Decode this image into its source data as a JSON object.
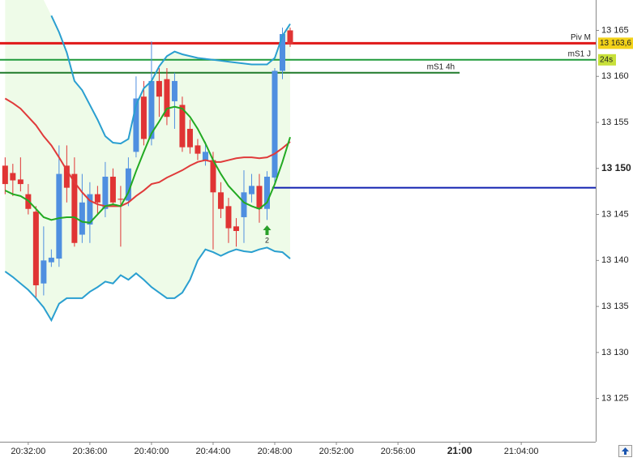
{
  "chart_data": {
    "type": "candlestick",
    "x": [
      "20:30:30",
      "20:31:00",
      "20:31:30",
      "20:32:00",
      "20:32:30",
      "20:33:00",
      "20:33:30",
      "20:34:00",
      "20:34:30",
      "20:35:00",
      "20:35:30",
      "20:36:00",
      "20:36:30",
      "20:37:00",
      "20:37:30",
      "20:38:00",
      "20:38:30",
      "20:39:00",
      "20:39:30",
      "20:40:00",
      "20:40:30",
      "20:41:00",
      "20:41:30",
      "20:42:00",
      "20:42:30",
      "20:43:00",
      "20:43:30",
      "20:44:00",
      "20:44:30",
      "20:45:00",
      "20:45:30",
      "20:46:00",
      "20:46:30",
      "20:47:00",
      "20:47:30",
      "20:48:00",
      "20:48:30",
      "20:49:00"
    ],
    "open": [
      13150.3,
      13149.5,
      13148.8,
      13147.2,
      13145.3,
      13137.5,
      13139.8,
      13140.2,
      13150.3,
      13149.4,
      13142.8,
      13143.9,
      13147.2,
      13145.6,
      13149.1,
      13146.7,
      13146.5,
      13151.8,
      13157.8,
      13153.2,
      13159.5,
      13159.7,
      13157.3,
      13156.9,
      13154.3,
      13152.5,
      13150.9,
      13150.9,
      13147.4,
      13145.9,
      13143.7,
      13144.7,
      13147.2,
      13148.1,
      13145.6,
      13149.0,
      13160.6,
      13165.0
    ],
    "high": [
      13151.2,
      13150.5,
      13151.2,
      13148.3,
      13145.9,
      13143.7,
      13141.2,
      13152.5,
      13152.5,
      13151.2,
      13149.4,
      13148.5,
      13148.1,
      13150.7,
      13150.0,
      13148.1,
      13151.2,
      13160.0,
      13159.5,
      13163.8,
      13160.9,
      13160.9,
      13160.4,
      13157.8,
      13155.3,
      13153.2,
      13152.9,
      13151.8,
      13148.5,
      13146.8,
      13144.6,
      13149.8,
      13149.4,
      13149.4,
      13149.7,
      13160.9,
      13165.3,
      13165.3
    ],
    "low": [
      13147.2,
      13147.0,
      13147.5,
      13145.0,
      13135.9,
      13136.2,
      13139.3,
      13139.3,
      13146.3,
      13141.5,
      13141.9,
      13141.9,
      13145.0,
      13144.7,
      13145.9,
      13141.5,
      13145.9,
      13151.2,
      13152.5,
      13152.5,
      13155.6,
      13154.7,
      13154.3,
      13151.8,
      13151.6,
      13150.9,
      13150.3,
      13141.2,
      13144.6,
      13141.9,
      13141.5,
      13141.9,
      13146.3,
      13144.1,
      13144.4,
      13148.5,
      13159.7,
      13163.2
    ],
    "close": [
      13148.3,
      13148.7,
      13148.3,
      13145.6,
      13137.3,
      13140.0,
      13140.3,
      13149.4,
      13147.9,
      13141.9,
      13146.3,
      13147.2,
      13146.3,
      13149.1,
      13146.3,
      13146.6,
      13150.0,
      13157.6,
      13153.2,
      13159.5,
      13157.8,
      13155.6,
      13159.5,
      13152.3,
      13152.3,
      13151.6,
      13151.8,
      13147.4,
      13145.6,
      13143.5,
      13143.2,
      13147.4,
      13148.1,
      13145.6,
      13149.1,
      13160.6,
      13164.6,
      13163.5
    ],
    "up_color": "#4f8fe0",
    "down_color": "#e03434",
    "lines": [
      {
        "color": "#2a9fd0",
        "values": [
          null,
          null,
          null,
          null,
          null,
          null,
          13166.6,
          13164.8,
          13162.6,
          13159.5,
          13158.5,
          13156.9,
          13155.3,
          13153.5,
          13152.8,
          13152.7,
          13153.2,
          13156.9,
          13158.7,
          13159.5,
          13161.1,
          13162.2,
          13162.7,
          13162.4,
          13162.2,
          13162.0,
          13161.9,
          13161.8,
          13161.7,
          13161.6,
          13161.5,
          13161.4,
          13161.3,
          13161.3,
          13161.3,
          13162.0,
          13164.4,
          13165.7
        ]
      },
      {
        "color": "#2a9fd0",
        "values": [
          13138.8,
          13138.2,
          13137.5,
          13136.8,
          13135.9,
          13134.9,
          13133.5,
          13135.3,
          13135.9,
          13135.9,
          13135.9,
          13136.6,
          13137.1,
          13137.7,
          13137.5,
          13138.4,
          13137.9,
          13138.6,
          13137.9,
          13137.1,
          13136.5,
          13135.9,
          13135.9,
          13136.5,
          13137.9,
          13140.0,
          13141.2,
          13140.9,
          13140.5,
          13140.9,
          13141.2,
          13141.0,
          13140.9,
          13141.2,
          13141.4,
          13141.0,
          13140.9,
          13140.2
        ]
      },
      {
        "color": "#e03a3a",
        "values": [
          13157.6,
          13157.1,
          13156.5,
          13155.6,
          13154.7,
          13153.5,
          13152.5,
          13151.2,
          13149.8,
          13148.5,
          13147.4,
          13146.5,
          13146.1,
          13145.9,
          13145.9,
          13145.9,
          13146.3,
          13147.0,
          13147.6,
          13148.3,
          13148.5,
          13149.0,
          13149.4,
          13149.8,
          13150.3,
          13150.7,
          13150.9,
          13150.7,
          13150.7,
          13150.9,
          13151.1,
          13151.2,
          13151.2,
          13151.1,
          13151.2,
          13151.6,
          13152.2,
          13152.9
        ]
      },
      {
        "color": "#22aa22",
        "values": [
          13147.6,
          13147.2,
          13147.0,
          13146.5,
          13145.6,
          13144.7,
          13144.4,
          13144.6,
          13144.7,
          13144.7,
          13144.2,
          13144.1,
          13145.0,
          13145.9,
          13146.1,
          13145.9,
          13147.4,
          13149.7,
          13151.8,
          13153.8,
          13155.1,
          13156.5,
          13156.7,
          13156.5,
          13155.6,
          13154.3,
          13152.7,
          13150.9,
          13149.4,
          13148.1,
          13147.2,
          13146.3,
          13145.9,
          13145.6,
          13146.3,
          13148.3,
          13150.7,
          13153.4
        ]
      }
    ],
    "band_fill": "#eefbe8",
    "levels": [
      {
        "label": "Piv M",
        "value": 13163.6,
        "value_label": "13 163,6",
        "color": "#e01818",
        "text_color": "#b01010",
        "box_color": "#f2d21a"
      },
      {
        "label": "mS1 J",
        "value": 13161.8,
        "color": "#1f9a3a",
        "text_color": "#1f7a2a",
        "countdown": "24s",
        "box_color": "#c8e03a"
      },
      {
        "label": "mS1 4h",
        "value": 13160.4,
        "color": "#1f7a2a",
        "text_color": "#1f7a2a",
        "x_end": "21:00:00"
      },
      {
        "value": 13147.9,
        "color": "#1020b0",
        "x_start": "20:47:50"
      }
    ],
    "signal": {
      "x": "20:47:30",
      "value": 13143.2,
      "label": "2",
      "color": "#2aa02a"
    },
    "xlim": [
      "20:30:10",
      "21:08:50"
    ],
    "xticks": [
      "20:32:00",
      "20:36:00",
      "20:40:00",
      "20:44:00",
      "20:48:00",
      "20:52:00",
      "20:56:00",
      {
        "value": "21:00:00",
        "label": "21:00",
        "bold": true
      },
      "21:04:00"
    ],
    "ylim": [
      13120.3,
      13168.3
    ],
    "yticks": [
      {
        "value": 13125,
        "label": "13 125"
      },
      {
        "value": 13130,
        "label": "13 130"
      },
      {
        "value": 13135,
        "label": "13 135"
      },
      {
        "value": 13140,
        "label": "13 140"
      },
      {
        "value": 13145,
        "label": "13 145"
      },
      {
        "value": 13150,
        "label": "13 150",
        "bold": true
      },
      {
        "value": 13155,
        "label": "13 155"
      },
      {
        "value": 13160,
        "label": "13 160"
      },
      {
        "value": 13165,
        "label": "13 165"
      }
    ],
    "grid": false
  }
}
